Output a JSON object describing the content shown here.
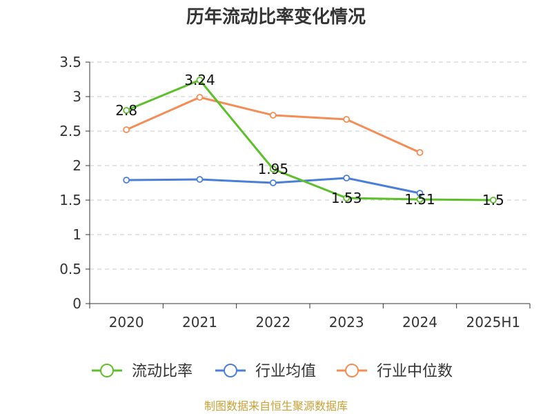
{
  "chart_data": {
    "type": "line",
    "title": "历年流动比率变化情况",
    "categories": [
      "2020",
      "2021",
      "2022",
      "2023",
      "2024",
      "2025H1"
    ],
    "ylim": [
      0,
      3.5
    ],
    "yticks": [
      0,
      0.5,
      1,
      1.5,
      2,
      2.5,
      3,
      3.5
    ],
    "ytick_labels": [
      "0",
      "0.5",
      "1",
      "1.5",
      "2",
      "2.5",
      "3",
      "3.5"
    ],
    "grid": true,
    "legend_position": "bottom",
    "series": [
      {
        "name": "流动比率",
        "color": "#5dbf2a",
        "values": [
          2.8,
          3.24,
          1.95,
          1.53,
          1.51,
          1.5
        ],
        "data_labels": [
          "2.8",
          "3.24",
          "1.95",
          "1.53",
          "1.51",
          "1.5"
        ]
      },
      {
        "name": "行业均值",
        "color": "#4a7fd8",
        "values": [
          1.79,
          1.8,
          1.75,
          1.82,
          1.6,
          null
        ]
      },
      {
        "name": "行业中位数",
        "color": "#f58c55",
        "values": [
          2.52,
          2.99,
          2.73,
          2.67,
          2.19,
          null
        ]
      }
    ]
  },
  "footer": {
    "source": "制图数据来自恒生聚源数据库"
  }
}
